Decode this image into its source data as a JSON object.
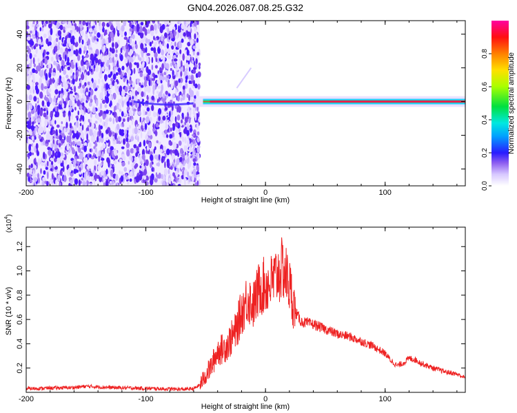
{
  "title": "GN04.2026.087.08.25.G32",
  "colors": {
    "snr_line": "#ee2222",
    "background_dots": "#6a2ee8",
    "band_core": "#e8204e"
  },
  "chart_data": [
    {
      "type": "heatmap",
      "title": "GN04.2026.087.08.25.G32",
      "xlabel": "Height of straight line (km)",
      "ylabel": "Frequency (Hz)",
      "xlim": [
        -200,
        167
      ],
      "ylim": [
        -50,
        48
      ],
      "x_ticks": [
        "-200",
        "-100",
        "0",
        "100"
      ],
      "y_ticks": [
        "40",
        "20",
        "0",
        "-20",
        "-40"
      ],
      "colorbar": {
        "label": "Normalized spectral amplitude",
        "range": [
          0,
          1
        ],
        "ticks": [
          "0.0",
          "0.2",
          "0.4",
          "0.6",
          "0.8"
        ],
        "colors": [
          "#ffffff",
          "#d7c8ff",
          "#8c5cf0",
          "#2a1bff",
          "#00a0ff",
          "#00e8e0",
          "#00e040",
          "#a8ff00",
          "#ffe000",
          "#ff8000",
          "#ff1010",
          "#ff00a0"
        ]
      },
      "noise_region_x": [
        -200,
        -55
      ],
      "signal_band": {
        "x_start": -58,
        "x_end": 167,
        "freq_center": 0,
        "freq_halfwidth": 2
      }
    },
    {
      "type": "line",
      "xlabel": "Height of straight line (km)",
      "ylabel": "SNR (10 * v/v)",
      "y_multiplier": "(x10",
      "y_multiplier_exp": "4",
      "xlim": [
        -200,
        167
      ],
      "ylim": [
        0,
        1.36
      ],
      "x_ticks": [
        "-200",
        "-100",
        "0",
        "100"
      ],
      "y_ticks": [
        "1.2",
        "1.0",
        "0.8",
        "0.6",
        "0.4",
        "0.2"
      ],
      "series": [
        {
          "x": [
            -200,
            -180,
            -160,
            -150,
            -130,
            -110,
            -90,
            -70,
            -60,
            -55,
            -50,
            -45,
            -40,
            -35,
            -30,
            -25,
            -20,
            -15,
            -10,
            -5,
            0,
            5,
            10,
            15,
            20,
            25,
            30,
            40,
            50,
            60,
            70,
            80,
            90,
            100,
            105,
            110,
            115,
            120,
            125,
            130,
            140,
            150,
            160,
            167
          ],
          "y": [
            0.03,
            0.035,
            0.04,
            0.05,
            0.04,
            0.035,
            0.03,
            0.025,
            0.03,
            0.06,
            0.14,
            0.22,
            0.34,
            0.36,
            0.42,
            0.5,
            0.66,
            0.78,
            0.72,
            0.86,
            0.88,
            0.9,
            0.97,
            1.02,
            0.88,
            0.66,
            0.58,
            0.56,
            0.52,
            0.48,
            0.46,
            0.42,
            0.38,
            0.32,
            0.26,
            0.22,
            0.24,
            0.28,
            0.27,
            0.24,
            0.2,
            0.17,
            0.15,
            0.12
          ]
        }
      ]
    }
  ]
}
